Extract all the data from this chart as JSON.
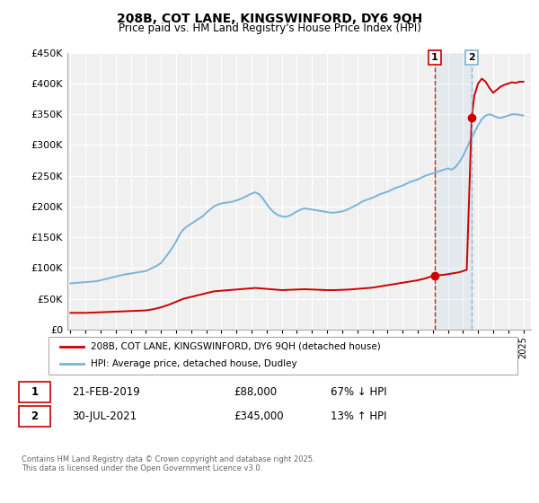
{
  "title": "208B, COT LANE, KINGSWINFORD, DY6 9QH",
  "subtitle": "Price paid vs. HM Land Registry's House Price Index (HPI)",
  "ylim": [
    0,
    450000
  ],
  "yticks": [
    0,
    50000,
    100000,
    150000,
    200000,
    250000,
    300000,
    350000,
    400000,
    450000
  ],
  "xlim_start": 1994.8,
  "xlim_end": 2025.5,
  "xticks": [
    1995,
    1996,
    1997,
    1998,
    1999,
    2000,
    2001,
    2002,
    2003,
    2004,
    2005,
    2006,
    2007,
    2008,
    2009,
    2010,
    2011,
    2012,
    2013,
    2014,
    2015,
    2016,
    2017,
    2018,
    2019,
    2020,
    2021,
    2022,
    2023,
    2024,
    2025
  ],
  "hpi_color": "#7ab4d8",
  "price_color": "#cc0000",
  "marker_color": "#cc0000",
  "vline1_color": "#cc0000",
  "vline2_color": "#7ab4d8",
  "event1_x": 2019.13,
  "event1_y": 88000,
  "event2_x": 2021.58,
  "event2_y": 345000,
  "legend_label1": "208B, COT LANE, KINGSWINFORD, DY6 9QH (detached house)",
  "legend_label2": "HPI: Average price, detached house, Dudley",
  "event1_date": "21-FEB-2019",
  "event1_price": "£88,000",
  "event1_hpi": "67% ↓ HPI",
  "event2_date": "30-JUL-2021",
  "event2_price": "£345,000",
  "event2_hpi": "13% ↑ HPI",
  "footer": "Contains HM Land Registry data © Crown copyright and database right 2025.\nThis data is licensed under the Open Government Licence v3.0.",
  "hpi_data": [
    [
      1995.0,
      75000
    ],
    [
      1995.25,
      75500
    ],
    [
      1995.5,
      76000
    ],
    [
      1995.75,
      76500
    ],
    [
      1996.0,
      77000
    ],
    [
      1996.25,
      77500
    ],
    [
      1996.5,
      78000
    ],
    [
      1996.75,
      78500
    ],
    [
      1997.0,
      80000
    ],
    [
      1997.25,
      81500
    ],
    [
      1997.5,
      83000
    ],
    [
      1997.75,
      84500
    ],
    [
      1998.0,
      86000
    ],
    [
      1998.25,
      87500
    ],
    [
      1998.5,
      89000
    ],
    [
      1998.75,
      90000
    ],
    [
      1999.0,
      91000
    ],
    [
      1999.25,
      92000
    ],
    [
      1999.5,
      93000
    ],
    [
      1999.75,
      94000
    ],
    [
      2000.0,
      95000
    ],
    [
      2000.25,
      98000
    ],
    [
      2000.5,
      101000
    ],
    [
      2000.75,
      104000
    ],
    [
      2001.0,
      108000
    ],
    [
      2001.25,
      116000
    ],
    [
      2001.5,
      124000
    ],
    [
      2001.75,
      133000
    ],
    [
      2002.0,
      143000
    ],
    [
      2002.25,
      155000
    ],
    [
      2002.5,
      163000
    ],
    [
      2002.75,
      168000
    ],
    [
      2003.0,
      172000
    ],
    [
      2003.25,
      176000
    ],
    [
      2003.5,
      180000
    ],
    [
      2003.75,
      184000
    ],
    [
      2004.0,
      190000
    ],
    [
      2004.25,
      195000
    ],
    [
      2004.5,
      200000
    ],
    [
      2004.75,
      203000
    ],
    [
      2005.0,
      205000
    ],
    [
      2005.25,
      206000
    ],
    [
      2005.5,
      207000
    ],
    [
      2005.75,
      208000
    ],
    [
      2006.0,
      210000
    ],
    [
      2006.25,
      212000
    ],
    [
      2006.5,
      215000
    ],
    [
      2006.75,
      218000
    ],
    [
      2007.0,
      221000
    ],
    [
      2007.25,
      223000
    ],
    [
      2007.5,
      220000
    ],
    [
      2007.75,
      213000
    ],
    [
      2008.0,
      204000
    ],
    [
      2008.25,
      196000
    ],
    [
      2008.5,
      190000
    ],
    [
      2008.75,
      186000
    ],
    [
      2009.0,
      184000
    ],
    [
      2009.25,
      183000
    ],
    [
      2009.5,
      185000
    ],
    [
      2009.75,
      188000
    ],
    [
      2010.0,
      192000
    ],
    [
      2010.25,
      195000
    ],
    [
      2010.5,
      197000
    ],
    [
      2010.75,
      196000
    ],
    [
      2011.0,
      195000
    ],
    [
      2011.25,
      194000
    ],
    [
      2011.5,
      193000
    ],
    [
      2011.75,
      192000
    ],
    [
      2012.0,
      191000
    ],
    [
      2012.25,
      190000
    ],
    [
      2012.5,
      190000
    ],
    [
      2012.75,
      191000
    ],
    [
      2013.0,
      192000
    ],
    [
      2013.25,
      194000
    ],
    [
      2013.5,
      197000
    ],
    [
      2013.75,
      200000
    ],
    [
      2014.0,
      203000
    ],
    [
      2014.25,
      207000
    ],
    [
      2014.5,
      210000
    ],
    [
      2014.75,
      212000
    ],
    [
      2015.0,
      214000
    ],
    [
      2015.25,
      217000
    ],
    [
      2015.5,
      220000
    ],
    [
      2015.75,
      222000
    ],
    [
      2016.0,
      224000
    ],
    [
      2016.25,
      227000
    ],
    [
      2016.5,
      230000
    ],
    [
      2016.75,
      232000
    ],
    [
      2017.0,
      234000
    ],
    [
      2017.25,
      237000
    ],
    [
      2017.5,
      240000
    ],
    [
      2017.75,
      242000
    ],
    [
      2018.0,
      244000
    ],
    [
      2018.25,
      247000
    ],
    [
      2018.5,
      250000
    ],
    [
      2018.75,
      252000
    ],
    [
      2019.0,
      254000
    ],
    [
      2019.25,
      256000
    ],
    [
      2019.5,
      258000
    ],
    [
      2019.75,
      260000
    ],
    [
      2020.0,
      262000
    ],
    [
      2020.25,
      260000
    ],
    [
      2020.5,
      264000
    ],
    [
      2020.75,
      272000
    ],
    [
      2021.0,
      282000
    ],
    [
      2021.25,
      295000
    ],
    [
      2021.5,
      308000
    ],
    [
      2021.75,
      320000
    ],
    [
      2022.0,
      332000
    ],
    [
      2022.25,
      342000
    ],
    [
      2022.5,
      348000
    ],
    [
      2022.75,
      350000
    ],
    [
      2023.0,
      348000
    ],
    [
      2023.25,
      345000
    ],
    [
      2023.5,
      344000
    ],
    [
      2023.75,
      346000
    ],
    [
      2024.0,
      348000
    ],
    [
      2024.25,
      350000
    ],
    [
      2024.5,
      350000
    ],
    [
      2024.75,
      349000
    ],
    [
      2025.0,
      348000
    ]
  ],
  "price_data": [
    [
      1995.0,
      27000
    ],
    [
      1995.5,
      27000
    ],
    [
      1996.0,
      27000
    ],
    [
      1996.5,
      27500
    ],
    [
      1997.0,
      28000
    ],
    [
      1997.5,
      28500
    ],
    [
      1998.0,
      29000
    ],
    [
      1998.5,
      29500
    ],
    [
      1999.0,
      30000
    ],
    [
      1999.5,
      30500
    ],
    [
      2000.0,
      31000
    ],
    [
      2000.5,
      33000
    ],
    [
      2001.0,
      36000
    ],
    [
      2001.5,
      40000
    ],
    [
      2002.0,
      45000
    ],
    [
      2002.5,
      50000
    ],
    [
      2003.0,
      53000
    ],
    [
      2003.5,
      56000
    ],
    [
      2004.0,
      59000
    ],
    [
      2004.5,
      62000
    ],
    [
      2005.0,
      63000
    ],
    [
      2005.5,
      64000
    ],
    [
      2006.0,
      65000
    ],
    [
      2006.5,
      66000
    ],
    [
      2007.0,
      67000
    ],
    [
      2007.25,
      67500
    ],
    [
      2007.5,
      67000
    ],
    [
      2007.75,
      66500
    ],
    [
      2008.0,
      66000
    ],
    [
      2008.5,
      65000
    ],
    [
      2009.0,
      64000
    ],
    [
      2009.5,
      64500
    ],
    [
      2010.0,
      65000
    ],
    [
      2010.5,
      65500
    ],
    [
      2011.0,
      65000
    ],
    [
      2011.5,
      64500
    ],
    [
      2012.0,
      64000
    ],
    [
      2012.5,
      64000
    ],
    [
      2013.0,
      64500
    ],
    [
      2013.5,
      65000
    ],
    [
      2014.0,
      66000
    ],
    [
      2014.5,
      67000
    ],
    [
      2015.0,
      68000
    ],
    [
      2015.5,
      70000
    ],
    [
      2016.0,
      72000
    ],
    [
      2016.5,
      74000
    ],
    [
      2017.0,
      76000
    ],
    [
      2017.5,
      78000
    ],
    [
      2018.0,
      80000
    ],
    [
      2018.5,
      83000
    ],
    [
      2018.75,
      85000
    ],
    [
      2019.13,
      88000
    ],
    [
      2019.25,
      88000
    ],
    [
      2019.5,
      88500
    ],
    [
      2019.75,
      89000
    ],
    [
      2020.0,
      90000
    ],
    [
      2020.25,
      91000
    ],
    [
      2020.5,
      92000
    ],
    [
      2020.75,
      93000
    ],
    [
      2021.0,
      95000
    ],
    [
      2021.25,
      97000
    ],
    [
      2021.58,
      345000
    ],
    [
      2021.75,
      380000
    ],
    [
      2022.0,
      400000
    ],
    [
      2022.25,
      408000
    ],
    [
      2022.5,
      403000
    ],
    [
      2022.75,
      393000
    ],
    [
      2023.0,
      385000
    ],
    [
      2023.25,
      390000
    ],
    [
      2023.5,
      395000
    ],
    [
      2023.75,
      398000
    ],
    [
      2024.0,
      400000
    ],
    [
      2024.25,
      402000
    ],
    [
      2024.5,
      401000
    ],
    [
      2024.75,
      403000
    ],
    [
      2025.0,
      403000
    ]
  ],
  "background_color": "#ffffff",
  "plot_bg_color": "#f0f0f0",
  "grid_color": "#ffffff"
}
